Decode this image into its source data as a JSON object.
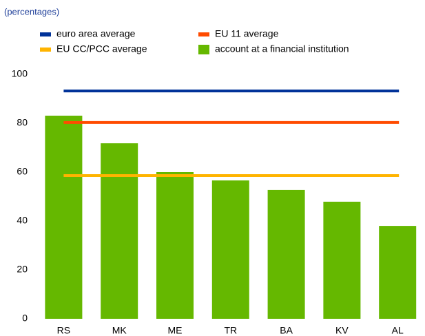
{
  "chart_data": {
    "type": "bar",
    "subtitle": "(percentages)",
    "categories": [
      "RS",
      "MK",
      "ME",
      "TR",
      "BA",
      "KV",
      "AL"
    ],
    "series": [
      {
        "name": "euro area average",
        "color": "#003299",
        "type": "line",
        "value": 93.2
      },
      {
        "name": "EU 11 average",
        "color": "#ff4b00",
        "type": "line",
        "value": 80.3
      },
      {
        "name": "EU CC/PCC average",
        "color": "#ffb400",
        "type": "line",
        "value": 58.6
      },
      {
        "name": "account at a financial institution",
        "color": "#65b800",
        "type": "bar",
        "values": [
          83.1,
          71.8,
          60,
          56.6,
          52.7,
          47.9,
          38
        ]
      }
    ],
    "ylim": [
      0,
      100
    ],
    "yticks": [
      0,
      20,
      40,
      60,
      80,
      100
    ],
    "grid": false
  }
}
